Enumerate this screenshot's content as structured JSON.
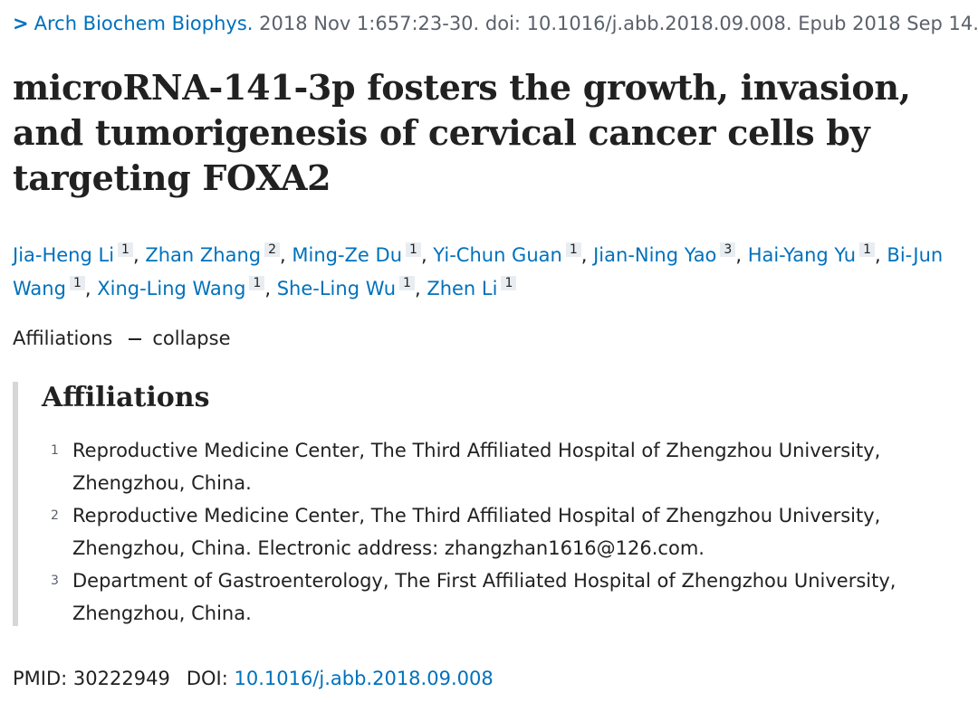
{
  "citation": {
    "journal": "Arch Biochem Biophys.",
    "details": "2018 Nov 1:657:23-30. doi: 10.1016/j.abb.2018.09.008. Epub 2018 Sep 14."
  },
  "title": "microRNA-141-3p fosters the growth, invasion, and tumorigenesis of cervical cancer cells by targeting FOXA2",
  "authors": [
    {
      "name": "Jia-Heng Li",
      "aff": "1"
    },
    {
      "name": "Zhan Zhang",
      "aff": "2"
    },
    {
      "name": "Ming-Ze Du",
      "aff": "1"
    },
    {
      "name": "Yi-Chun Guan",
      "aff": "1"
    },
    {
      "name": "Jian-Ning Yao",
      "aff": "3"
    },
    {
      "name": "Hai-Yang Yu",
      "aff": "1"
    },
    {
      "name": "Bi-Jun Wang",
      "aff": "1"
    },
    {
      "name": "Xing-Ling Wang",
      "aff": "1"
    },
    {
      "name": "She-Ling Wu",
      "aff": "1"
    },
    {
      "name": "Zhen Li",
      "aff": "1"
    }
  ],
  "affiliations_toggle": {
    "label": "Affiliations",
    "action": "collapse"
  },
  "affiliations": {
    "heading": "Affiliations",
    "items": [
      {
        "num": "1",
        "text": "Reproductive Medicine Center, The Third Affiliated Hospital of Zhengzhou University, Zhengzhou, China."
      },
      {
        "num": "2",
        "text": "Reproductive Medicine Center, The Third Affiliated Hospital of Zhengzhou University, Zhengzhou, China. Electronic address: zhangzhan1616@126.com."
      },
      {
        "num": "3",
        "text": "Department of Gastroenterology, The First Affiliated Hospital of Zhengzhou University, Zhengzhou, China."
      }
    ]
  },
  "identifiers": {
    "pmid_label": "PMID:",
    "pmid": "30222949",
    "doi_label": "DOI:",
    "doi": "10.1016/j.abb.2018.09.008"
  }
}
